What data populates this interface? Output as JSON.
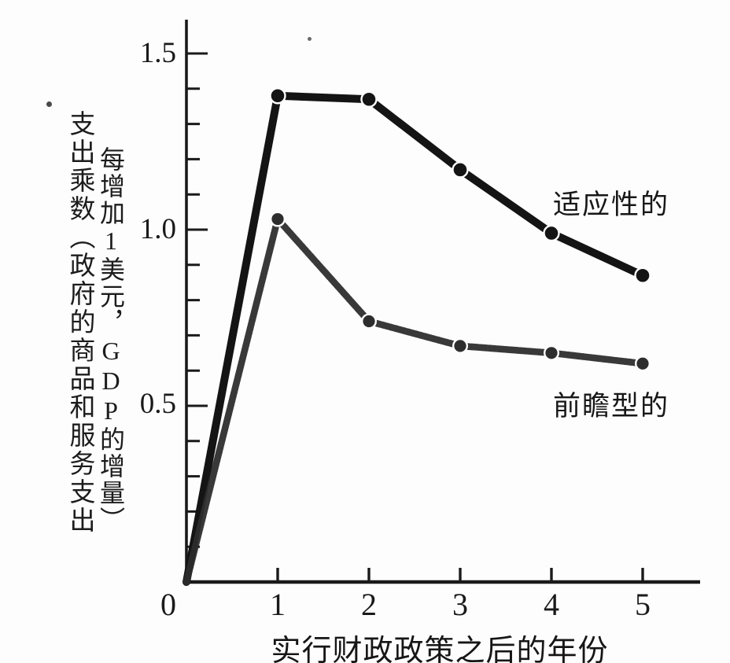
{
  "figure": {
    "background": "#fdfdfd",
    "ink_color": "#1a1a1a"
  },
  "chart_data": {
    "type": "line",
    "title": "",
    "xlabel": "实行财政政策之后的年份",
    "ylabel_outer_column": "支出乘数（政府的商品和服务支出",
    "ylabel_inner_column": "每增加1美元，GDP的增量）",
    "ylabel_full": "支出乘数（政府的商品和服务支出每增加1美元，GDP的增量）",
    "x": [
      0,
      1,
      2,
      3,
      4,
      5
    ],
    "series": [
      {
        "name": "适应性的",
        "values": [
          0,
          1.38,
          1.37,
          1.17,
          0.99,
          0.87
        ],
        "color": "#141414",
        "style": "solid"
      },
      {
        "name": "前瞻型的",
        "values": [
          0,
          1.03,
          0.74,
          0.67,
          0.65,
          0.62
        ],
        "color": "#2d2d2d",
        "style": "stippled"
      }
    ],
    "xlim": [
      0,
      5.6
    ],
    "ylim": [
      0,
      1.6
    ],
    "xticks": {
      "labels": [
        "0",
        "1",
        "2",
        "3",
        "4",
        "5"
      ],
      "values": [
        0,
        1,
        2,
        3,
        4,
        5
      ]
    },
    "yticks": {
      "labels": [
        "1.5",
        "1.0",
        "0.5"
      ],
      "values": [
        1.5,
        1.0,
        0.5
      ],
      "minor_step": 0.1
    },
    "grid": false,
    "legend_position": "inline-annotations",
    "marker": "filled-circle"
  }
}
